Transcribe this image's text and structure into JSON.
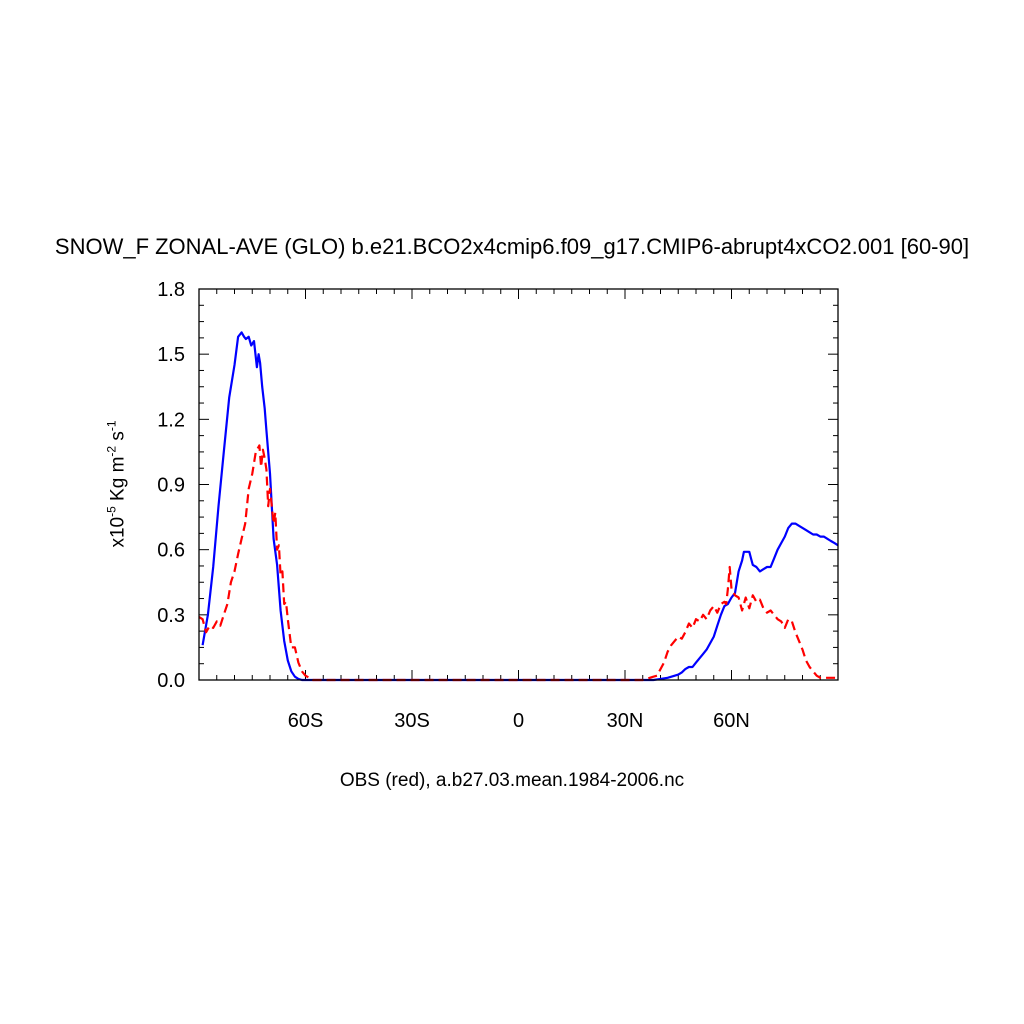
{
  "chart_data": {
    "type": "line",
    "title": "SNOW_F ZONAL-AVE (GLO) b.e21.BCO2x4cmip6.f09_g17.CMIP6-abrupt4xCO2.001 [60-90]",
    "ylabel": {
      "prefix": "x10",
      "exp1": "-5",
      "mid": " Kg m",
      "exp2": "-2",
      "mid2": " s",
      "exp3": "-1"
    },
    "footnote": "OBS (red), a.b27.03.mean.1984-2006.nc",
    "xlim": [
      -90,
      90
    ],
    "ylim": [
      0,
      1.8
    ],
    "x_ticks": [
      {
        "value": -60,
        "label": "60S"
      },
      {
        "value": -30,
        "label": "30S"
      },
      {
        "value": 0,
        "label": "0"
      },
      {
        "value": 30,
        "label": "30N"
      },
      {
        "value": 60,
        "label": "60N"
      }
    ],
    "y_ticks": [
      {
        "value": 0.0,
        "label": "0.0"
      },
      {
        "value": 0.3,
        "label": "0.3"
      },
      {
        "value": 0.6,
        "label": "0.6"
      },
      {
        "value": 0.9,
        "label": "0.9"
      },
      {
        "value": 1.2,
        "label": "1.2"
      },
      {
        "value": 1.5,
        "label": "1.5"
      },
      {
        "value": 1.8,
        "label": "1.8"
      }
    ],
    "series": [
      {
        "color": "#0000ff",
        "dash": "solid",
        "x": [
          -89,
          -87.5,
          -86,
          -84.5,
          -83,
          -81.5,
          -80,
          -79,
          -78,
          -77.3,
          -76.8,
          -76,
          -75.3,
          -74.5,
          -73.7,
          -73.2,
          -72.8,
          -72.2,
          -71.5,
          -71,
          -70,
          -69,
          -68,
          -67,
          -66,
          -65,
          -64,
          -63,
          -62,
          -61,
          -60,
          -59,
          -58,
          -56,
          -54,
          -52,
          -50,
          -45,
          -40,
          -20,
          0,
          20,
          38,
          40,
          42,
          44,
          45,
          46,
          47,
          48,
          49,
          50,
          51,
          52,
          53,
          54,
          55,
          56,
          57,
          58,
          59,
          60,
          61,
          62,
          63,
          63.5,
          64,
          65,
          65.5,
          66,
          67,
          68,
          69,
          70,
          71,
          72,
          73,
          74,
          75,
          76,
          77,
          78,
          79,
          80,
          81,
          82,
          83,
          84,
          85,
          86,
          87,
          88,
          89,
          90
        ],
        "y": [
          0.16,
          0.3,
          0.52,
          0.8,
          1.05,
          1.3,
          1.45,
          1.58,
          1.6,
          1.58,
          1.57,
          1.58,
          1.54,
          1.56,
          1.44,
          1.5,
          1.46,
          1.35,
          1.25,
          1.15,
          0.95,
          0.65,
          0.53,
          0.32,
          0.18,
          0.09,
          0.04,
          0.015,
          0.005,
          0.0,
          0.0,
          0.0,
          0.0,
          0.0,
          0.0,
          0.0,
          0.0,
          0.0,
          0.0,
          0.0,
          0.0,
          0.0,
          0.0,
          0.005,
          0.01,
          0.02,
          0.025,
          0.035,
          0.05,
          0.06,
          0.06,
          0.08,
          0.1,
          0.12,
          0.14,
          0.17,
          0.2,
          0.25,
          0.3,
          0.34,
          0.35,
          0.38,
          0.4,
          0.5,
          0.55,
          0.59,
          0.59,
          0.59,
          0.56,
          0.53,
          0.52,
          0.5,
          0.51,
          0.52,
          0.52,
          0.56,
          0.6,
          0.63,
          0.66,
          0.7,
          0.72,
          0.72,
          0.71,
          0.7,
          0.69,
          0.68,
          0.67,
          0.67,
          0.66,
          0.66,
          0.65,
          0.64,
          0.63,
          0.62
        ]
      },
      {
        "color": "#ff0000",
        "dash": "dashed",
        "x": [
          -90,
          -89,
          -88,
          -87,
          -86,
          -85,
          -84,
          -83,
          -82,
          -81,
          -80,
          -79,
          -78,
          -77,
          -76,
          -75,
          -74,
          -73,
          -72.5,
          -72,
          -71.5,
          -71,
          -70.5,
          -70,
          -69.5,
          -69,
          -68.5,
          -68,
          -67.5,
          -67,
          -66.5,
          -66,
          -65.5,
          -65,
          -64,
          -63,
          -62,
          -61,
          -60,
          -59,
          -58,
          -56,
          -54,
          -52,
          -50,
          -40,
          -20,
          0,
          20,
          35,
          36,
          37,
          38,
          39,
          40,
          41,
          42,
          43,
          44,
          45,
          46,
          47,
          48,
          49,
          50,
          51,
          52,
          53,
          54,
          55,
          56,
          57,
          58,
          58.5,
          59,
          59.5,
          60,
          61,
          62,
          63,
          64,
          65,
          66,
          67,
          68,
          69,
          70,
          71,
          72,
          73,
          74,
          75,
          76,
          77,
          78,
          79,
          80,
          81,
          82,
          83,
          84,
          85,
          86,
          87,
          88,
          89,
          90
        ],
        "y": [
          0.29,
          0.28,
          0.22,
          0.25,
          0.24,
          0.27,
          0.25,
          0.3,
          0.35,
          0.45,
          0.5,
          0.58,
          0.65,
          0.72,
          0.88,
          0.95,
          1.05,
          1.08,
          0.98,
          1.06,
          1.02,
          0.97,
          0.8,
          0.88,
          0.8,
          0.72,
          0.77,
          0.6,
          0.62,
          0.48,
          0.5,
          0.35,
          0.36,
          0.28,
          0.15,
          0.15,
          0.08,
          0.04,
          0.02,
          0.01,
          0.0,
          0.0,
          0.0,
          0.0,
          0.0,
          0.0,
          0.0,
          0.0,
          0.0,
          0.0,
          0.005,
          0.01,
          0.015,
          0.02,
          0.05,
          0.08,
          0.13,
          0.16,
          0.18,
          0.2,
          0.19,
          0.22,
          0.26,
          0.24,
          0.28,
          0.27,
          0.3,
          0.28,
          0.32,
          0.34,
          0.31,
          0.35,
          0.36,
          0.35,
          0.42,
          0.52,
          0.42,
          0.39,
          0.38,
          0.32,
          0.38,
          0.33,
          0.39,
          0.36,
          0.37,
          0.33,
          0.31,
          0.32,
          0.3,
          0.28,
          0.27,
          0.24,
          0.28,
          0.27,
          0.22,
          0.18,
          0.14,
          0.09,
          0.06,
          0.04,
          0.02,
          0.01,
          0.01,
          0.01,
          0.01,
          0.01,
          0.01
        ]
      }
    ]
  }
}
